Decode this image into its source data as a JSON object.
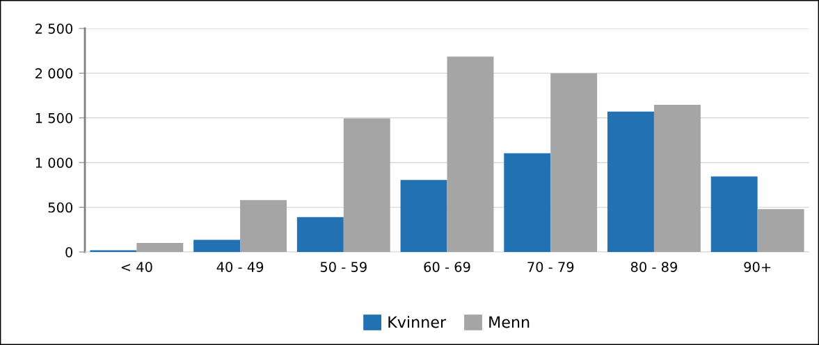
{
  "chart_data": {
    "type": "bar",
    "categories": [
      "< 40",
      "40 - 49",
      "50 - 59",
      "60 - 69",
      "70 - 79",
      "80 - 89",
      "90+"
    ],
    "series": [
      {
        "name": "Kvinner",
        "color": "#2271b3",
        "values": [
          20,
          135,
          390,
          805,
          1105,
          1570,
          845
        ]
      },
      {
        "name": "Menn",
        "color": "#a5a5a5",
        "values": [
          100,
          580,
          1495,
          2185,
          2000,
          1645,
          480
        ]
      }
    ],
    "ylim": [
      0,
      2500
    ],
    "yticks": [
      0,
      {
        "value": 500,
        "label": "500"
      },
      {
        "value": 1000,
        "label": "1 000"
      },
      {
        "value": 1500,
        "label": "1 500"
      },
      {
        "value": 2000,
        "label": "2 000"
      },
      {
        "value": 2500,
        "label": "2 500"
      }
    ],
    "grid": "y",
    "legend": "bottom"
  }
}
